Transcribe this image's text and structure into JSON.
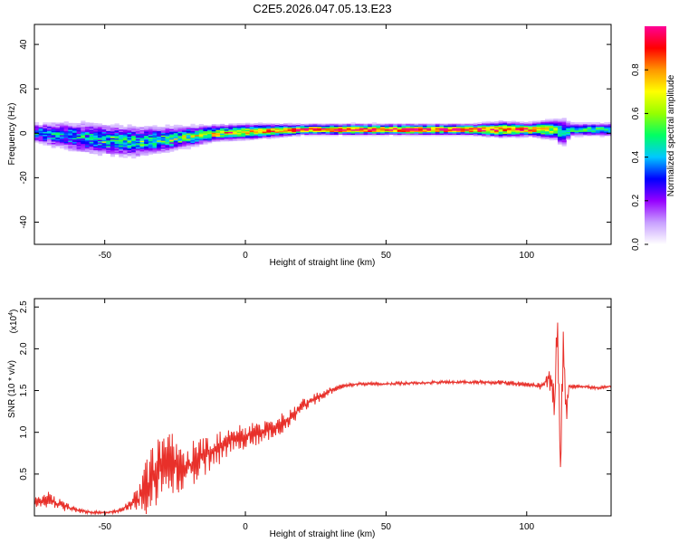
{
  "chart_data": [
    {
      "type": "heatmap",
      "title": "C2E5.2026.047.05.13.E23",
      "xlabel": "Height of straight line (km)",
      "ylabel": "Frequency (Hz)",
      "xlim": [
        -75,
        130
      ],
      "ylim": [
        -50,
        49
      ],
      "x_ticks": [
        -50,
        0,
        50,
        100
      ],
      "y_ticks": [
        -40,
        -20,
        0,
        20,
        40
      ],
      "colorbar": {
        "label": "Normalized spectral amplitude",
        "range": [
          0,
          1
        ],
        "ticks": [
          "0.0",
          "0.2",
          "0.4",
          "0.6",
          "0.8"
        ],
        "tick_values": [
          0,
          0.2,
          0.4,
          0.6,
          0.8
        ],
        "colors": [
          "#ffffff",
          "#c8a0ff",
          "#9600ff",
          "#0000ff",
          "#00c8ff",
          "#00ff64",
          "#96ff00",
          "#ffff00",
          "#ff9600",
          "#ff0000",
          "#ff0096"
        ]
      },
      "ridge": {
        "x": [
          -75,
          -60,
          -50,
          -40,
          -30,
          -20,
          -10,
          0,
          10,
          20,
          30,
          40,
          50,
          60,
          70,
          80,
          90,
          100,
          110,
          112,
          115,
          130
        ],
        "freq": [
          0,
          -2,
          -3,
          -4,
          -3,
          -1.5,
          0,
          0.5,
          1,
          1.5,
          1.5,
          1.5,
          1.5,
          1.5,
          1.5,
          1.5,
          1.5,
          1.5,
          1.5,
          0,
          1.5,
          1.5
        ],
        "amplitude": [
          0.35,
          0.4,
          0.45,
          0.45,
          0.5,
          0.55,
          0.65,
          0.7,
          0.8,
          0.85,
          0.9,
          0.95,
          0.95,
          0.95,
          0.95,
          0.95,
          0.8,
          0.85,
          0.6,
          0.4,
          0.5,
          0.5
        ],
        "spread_hz": [
          4,
          6,
          6,
          6,
          5,
          4,
          3,
          3,
          2.5,
          2,
          2,
          2,
          2,
          2,
          2,
          2,
          3,
          2.5,
          4,
          6,
          2.5,
          2.5
        ]
      }
    },
    {
      "type": "line",
      "title": "",
      "xlabel": "Height of straight line (km)",
      "ylabel": "SNR (10 * v/v)",
      "y_multiplier": "(x10",
      "y_multiplier_exp": "4",
      "y_multiplier_close": ")",
      "xlim": [
        -75,
        130
      ],
      "ylim": [
        0,
        2.6
      ],
      "x_ticks": [
        -50,
        0,
        50,
        100
      ],
      "y_ticks": [
        0.5,
        1.0,
        1.5,
        2.0,
        2.5
      ],
      "y_tick_labels": [
        "0.5",
        "1.0",
        "1.5",
        "2.0",
        "2.5"
      ],
      "color": "#e8302a",
      "series": [
        {
          "x": [
            -75,
            -70,
            -65,
            -60,
            -55,
            -50,
            -45,
            -42,
            -38,
            -35,
            -32,
            -30,
            -28,
            -25,
            -22,
            -20,
            -15,
            -10,
            -5,
            0,
            5,
            10,
            15,
            20,
            25,
            30,
            35,
            40,
            50,
            60,
            70,
            80,
            90,
            100,
            105,
            108,
            110,
            111,
            112,
            113,
            114,
            115,
            120,
            125,
            130
          ],
          "y": [
            0.15,
            0.2,
            0.12,
            0.07,
            0.04,
            0.04,
            0.06,
            0.12,
            0.2,
            0.35,
            0.5,
            0.6,
            0.65,
            0.6,
            0.55,
            0.6,
            0.7,
            0.8,
            0.9,
            0.95,
            1.0,
            1.05,
            1.15,
            1.3,
            1.4,
            1.5,
            1.55,
            1.58,
            1.58,
            1.59,
            1.6,
            1.6,
            1.6,
            1.57,
            1.55,
            1.65,
            1.4,
            2.3,
            0.5,
            2.2,
            1.2,
            1.55,
            1.55,
            1.53,
            1.55
          ],
          "noise": [
            0.08,
            0.1,
            0.06,
            0.03,
            0.02,
            0.02,
            0.03,
            0.05,
            0.15,
            0.35,
            0.4,
            0.45,
            0.4,
            0.35,
            0.3,
            0.28,
            0.25,
            0.2,
            0.18,
            0.15,
            0.15,
            0.13,
            0.12,
            0.1,
            0.07,
            0.05,
            0.03,
            0.02,
            0.02,
            0.02,
            0.02,
            0.02,
            0.03,
            0.03,
            0.04,
            0.1,
            0.3,
            0.3,
            0.3,
            0.3,
            0.2,
            0.03,
            0.02,
            0.02,
            0.02
          ]
        }
      ]
    }
  ]
}
